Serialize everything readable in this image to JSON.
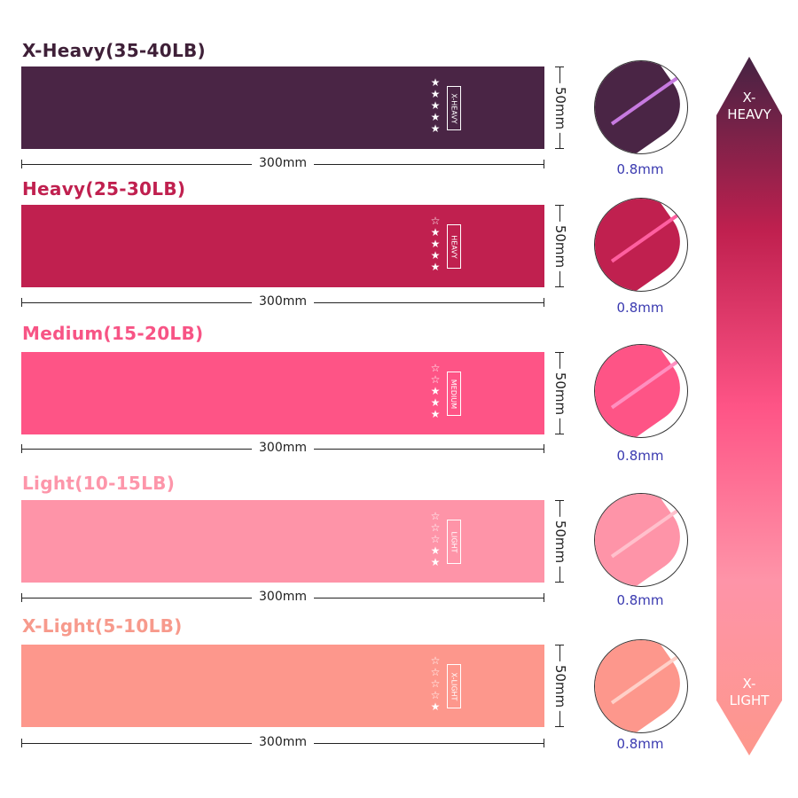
{
  "bands": [
    {
      "title": "X-Heavy(35-40LB)",
      "tag": "X-HEAVY",
      "stars_filled": 5,
      "stars_total": 5,
      "color": "#4a2545",
      "title_color": "#3f2038",
      "edge": "#c77ae0",
      "length": "300mm",
      "width": "50mm",
      "thickness": "0.8mm"
    },
    {
      "title": "Heavy(25-30LB)",
      "tag": "HEAVY",
      "stars_filled": 4,
      "stars_total": 5,
      "color": "#c0204f",
      "title_color": "#c0204f",
      "edge": "#ff5fa0",
      "length": "300mm",
      "width": "50mm",
      "thickness": "0.8mm"
    },
    {
      "title": "Medium(15-20LB)",
      "tag": "MEDIUM",
      "stars_filled": 3,
      "stars_total": 5,
      "color": "#fe5486",
      "title_color": "#f75485",
      "edge": "#ff8fc0",
      "length": "300mm",
      "width": "50mm",
      "thickness": "0.8mm"
    },
    {
      "title": "Light(10-15LB)",
      "tag": "LIGHT",
      "stars_filled": 2,
      "stars_total": 5,
      "color": "#fe94a8",
      "title_color": "#fd96aa",
      "edge": "#ffc0cc",
      "length": "300mm",
      "width": "50mm",
      "thickness": "0.8mm"
    },
    {
      "title": "X-Light(5-10LB)",
      "tag": "X-LIGHT",
      "stars_filled": 1,
      "stars_total": 5,
      "color": "#fd978c",
      "title_color": "#f79a8c",
      "edge": "#ffd0c8",
      "length": "300mm",
      "width": "50mm",
      "thickness": "0.8mm"
    }
  ],
  "scale": {
    "top_label": "X-\nHEAVY",
    "bottom_label": "X-\nLIGHT",
    "gradient": [
      "#452343",
      "#c0204f",
      "#fe5486",
      "#fe94a8",
      "#fd978c"
    ]
  }
}
